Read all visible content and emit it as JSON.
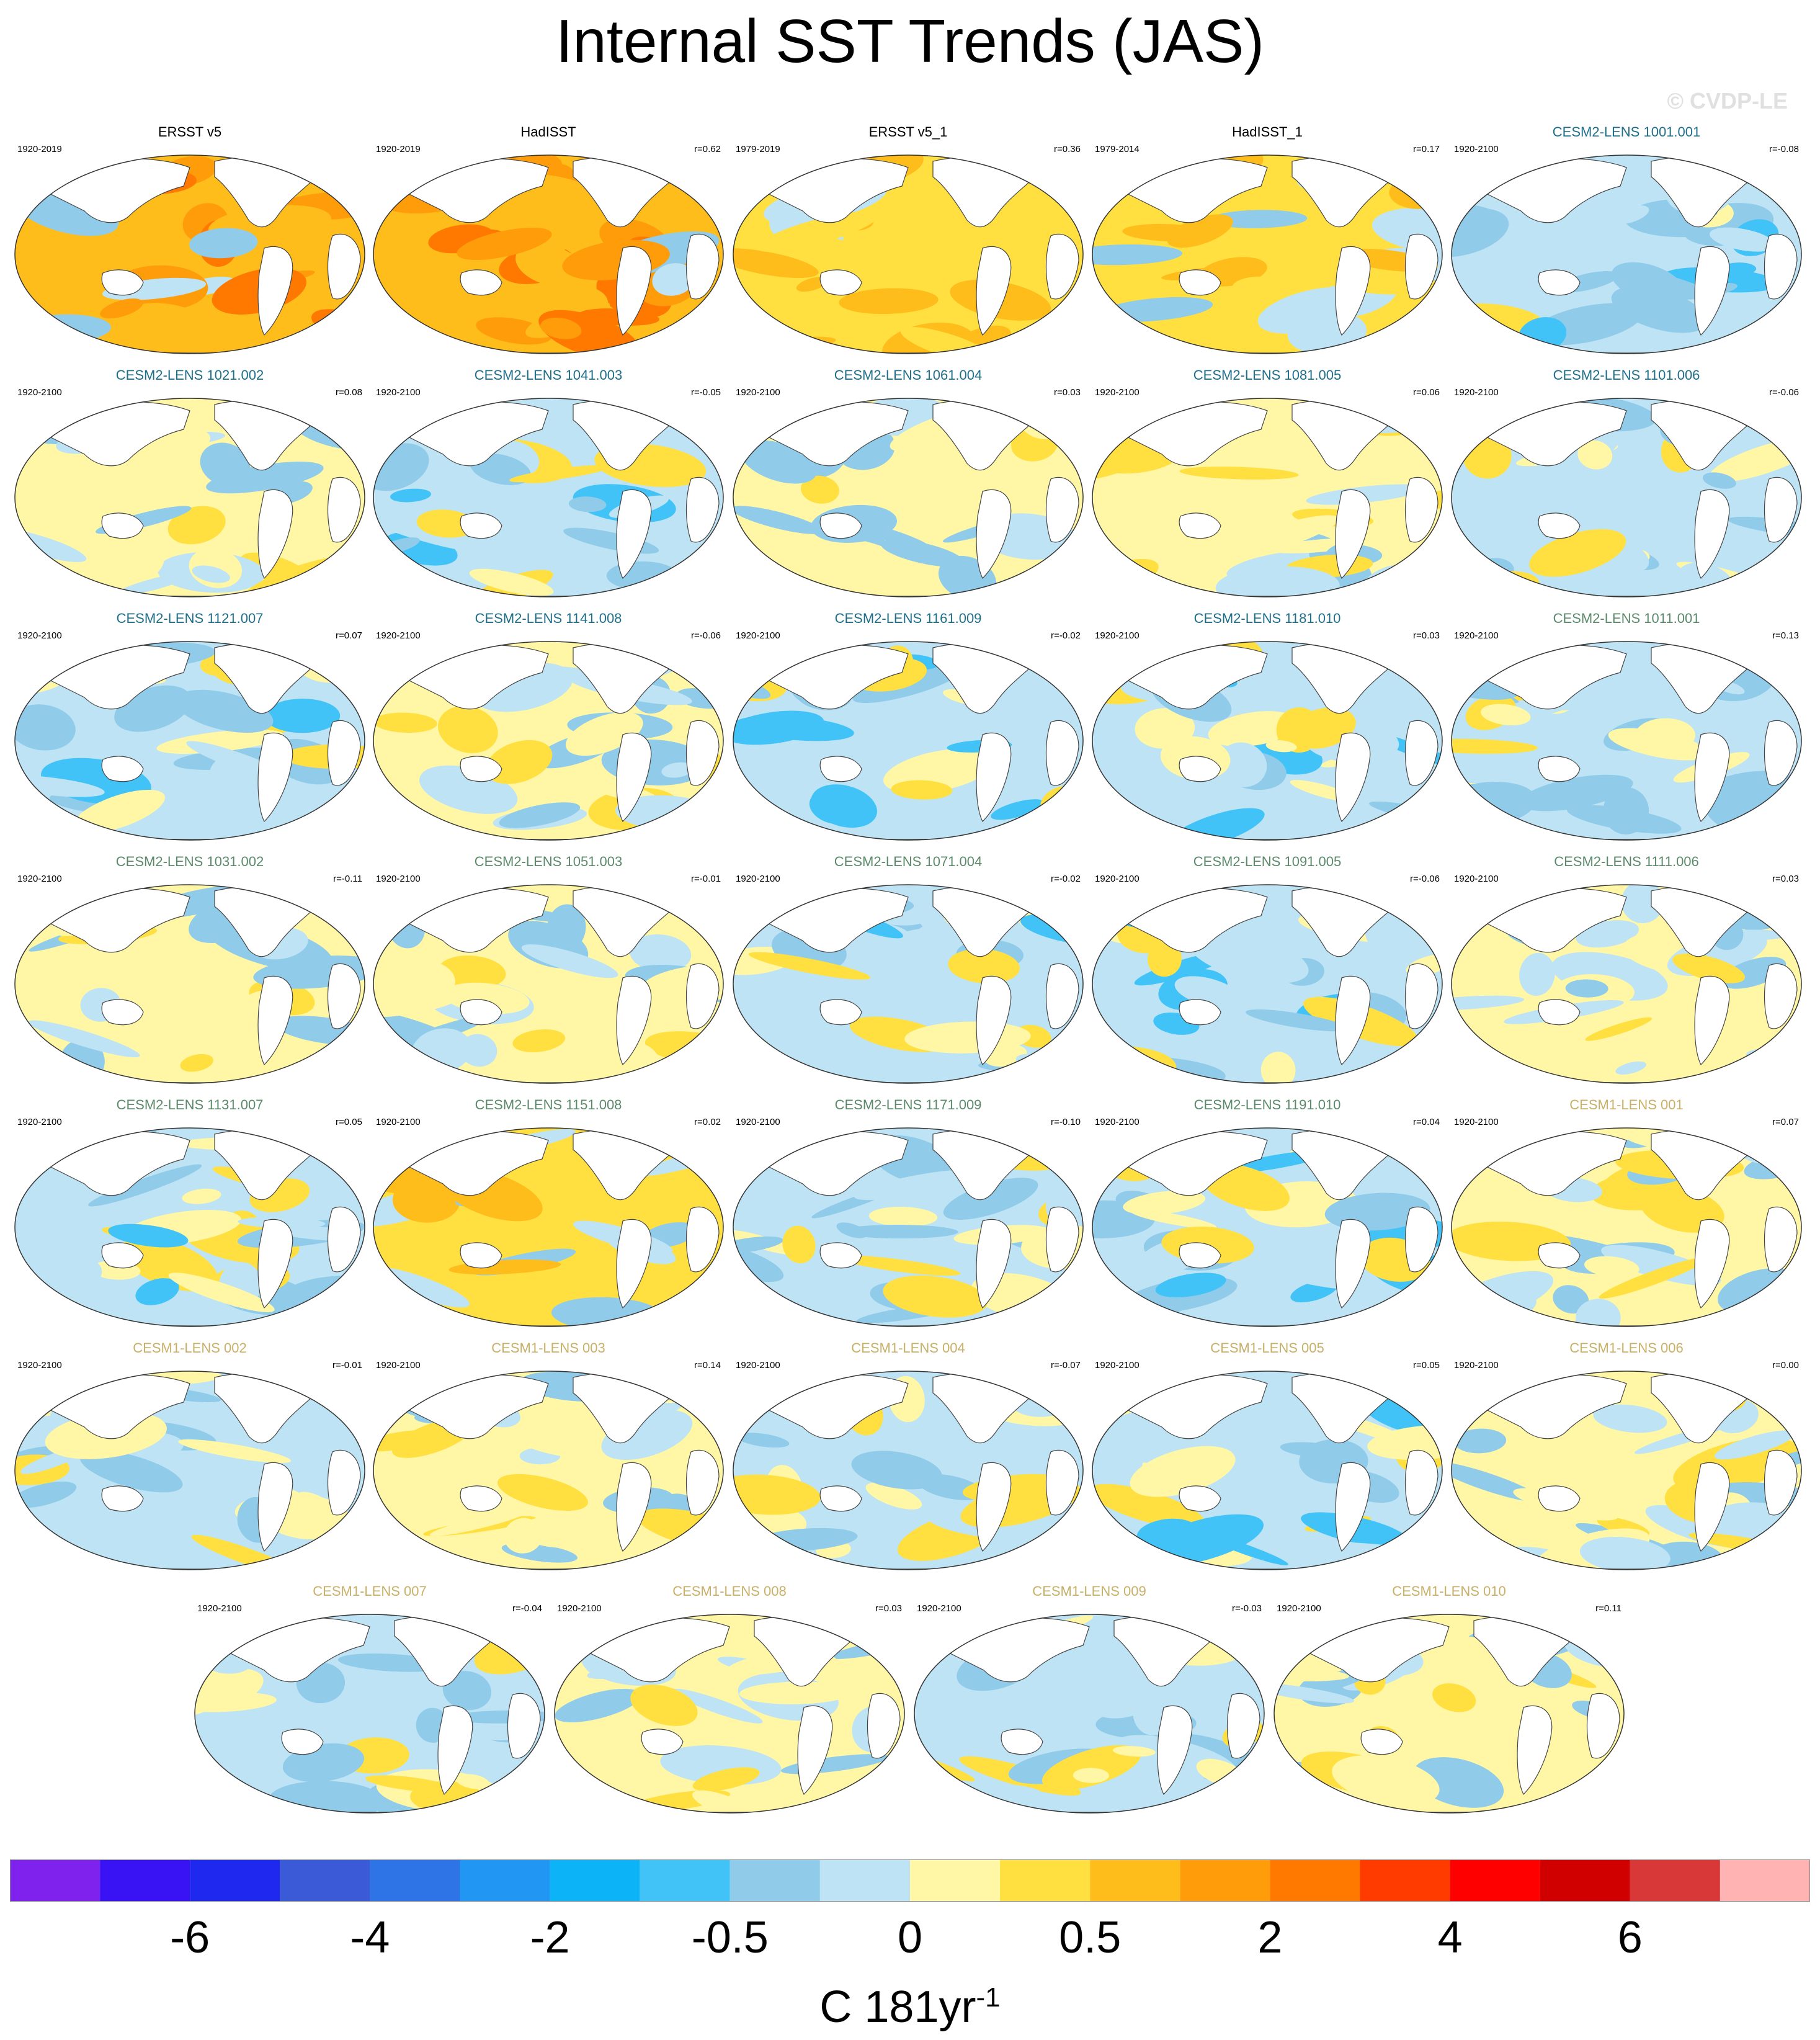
{
  "title": "Internal SST Trends (JAS)",
  "watermark": "© CVDP-LE",
  "colorbar": {
    "colors": [
      "#7f22ee",
      "#3a13f5",
      "#1e28ef",
      "#3b5ad8",
      "#2e74e6",
      "#2196f3",
      "#0cb4f7",
      "#42c3f7",
      "#90cbea",
      "#bde3f4",
      "#fff7a6",
      "#ffe040",
      "#ffbd1c",
      "#ff9c0a",
      "#ff7900",
      "#ff3b00",
      "#ff0000",
      "#d00000",
      "#d83838",
      "#ffb3b3"
    ],
    "tick_labels": [
      "-6",
      "-4",
      "-2",
      "-0.5",
      "0",
      "0.5",
      "2",
      "4",
      "6"
    ],
    "units": "C 181yr",
    "units_exponent": "-1"
  },
  "chart_data": {
    "type": "map-panels",
    "title": "Internal SST Trends (JAS)",
    "colorbar_levels": [
      "-6",
      "-4",
      "-2",
      "-0.5",
      "0",
      "0.5",
      "2",
      "4",
      "6"
    ],
    "panels": [
      {
        "name": "ERSST v5",
        "years": "1920-2019",
        "corr": "",
        "group": "obs",
        "warmth": 0.85
      },
      {
        "name": "HadISST",
        "years": "1920-2019",
        "corr": "r=0.62",
        "group": "obs",
        "warmth": 0.9
      },
      {
        "name": "ERSST v5_1",
        "years": "1979-2019",
        "corr": "r=0.36",
        "group": "obs",
        "warmth": 0.7
      },
      {
        "name": "HadISST_1",
        "years": "1979-2014",
        "corr": "r=0.17",
        "group": "obs",
        "warmth": 0.6
      },
      {
        "name": "CESM2-LENS 1001.001",
        "years": "1920-2100",
        "corr": "r=-0.08",
        "group": "cesm2a",
        "warmth": 0.25
      },
      {
        "name": "CESM2-LENS 1021.002",
        "years": "1920-2100",
        "corr": "r=0.08",
        "group": "cesm2a",
        "warmth": 0.45
      },
      {
        "name": "CESM2-LENS 1041.003",
        "years": "1920-2100",
        "corr": "r=-0.05",
        "group": "cesm2a",
        "warmth": 0.35
      },
      {
        "name": "CESM2-LENS 1061.004",
        "years": "1920-2100",
        "corr": "r=0.03",
        "group": "cesm2a",
        "warmth": 0.45
      },
      {
        "name": "CESM2-LENS 1081.005",
        "years": "1920-2100",
        "corr": "r=0.06",
        "group": "cesm2a",
        "warmth": 0.45
      },
      {
        "name": "CESM2-LENS 1101.006",
        "years": "1920-2100",
        "corr": "r=-0.06",
        "group": "cesm2a",
        "warmth": 0.4
      },
      {
        "name": "CESM2-LENS 1121.007",
        "years": "1920-2100",
        "corr": "r=0.07",
        "group": "cesm2a",
        "warmth": 0.35
      },
      {
        "name": "CESM2-LENS 1141.008",
        "years": "1920-2100",
        "corr": "r=-0.06",
        "group": "cesm2a",
        "warmth": 0.45
      },
      {
        "name": "CESM2-LENS 1161.009",
        "years": "1920-2100",
        "corr": "r=-0.02",
        "group": "cesm2a",
        "warmth": 0.3
      },
      {
        "name": "CESM2-LENS 1181.010",
        "years": "1920-2100",
        "corr": "r=0.03",
        "group": "cesm2a",
        "warmth": 0.35
      },
      {
        "name": "CESM2-LENS 1011.001",
        "years": "1920-2100",
        "corr": "r=0.13",
        "group": "cesm2b",
        "warmth": 0.4
      },
      {
        "name": "CESM2-LENS 1031.002",
        "years": "1920-2100",
        "corr": "r=-0.11",
        "group": "cesm2b",
        "warmth": 0.55
      },
      {
        "name": "CESM2-LENS 1051.003",
        "years": "1920-2100",
        "corr": "r=-0.01",
        "group": "cesm2b",
        "warmth": 0.55
      },
      {
        "name": "CESM2-LENS 1071.004",
        "years": "1920-2100",
        "corr": "r=-0.02",
        "group": "cesm2b",
        "warmth": 0.35
      },
      {
        "name": "CESM2-LENS 1091.005",
        "years": "1920-2100",
        "corr": "r=-0.06",
        "group": "cesm2b",
        "warmth": 0.3
      },
      {
        "name": "CESM2-LENS 1111.006",
        "years": "1920-2100",
        "corr": "r=0.03",
        "group": "cesm2b",
        "warmth": 0.45
      },
      {
        "name": "CESM2-LENS 1131.007",
        "years": "1920-2100",
        "corr": "r=0.05",
        "group": "cesm2b",
        "warmth": 0.35
      },
      {
        "name": "CESM2-LENS 1151.008",
        "years": "1920-2100",
        "corr": "r=0.02",
        "group": "cesm2b",
        "warmth": 0.6
      },
      {
        "name": "CESM2-LENS 1171.009",
        "years": "1920-2100",
        "corr": "r=-0.10",
        "group": "cesm2b",
        "warmth": 0.4
      },
      {
        "name": "CESM2-LENS 1191.010",
        "years": "1920-2100",
        "corr": "r=0.04",
        "group": "cesm2b",
        "warmth": 0.35
      },
      {
        "name": "CESM1-LENS 001",
        "years": "1920-2100",
        "corr": "r=0.07",
        "group": "cesm1",
        "warmth": 0.45
      },
      {
        "name": "CESM1-LENS 002",
        "years": "1920-2100",
        "corr": "r=-0.01",
        "group": "cesm1",
        "warmth": 0.4
      },
      {
        "name": "CESM1-LENS 003",
        "years": "1920-2100",
        "corr": "r=0.14",
        "group": "cesm1",
        "warmth": 0.5
      },
      {
        "name": "CESM1-LENS 004",
        "years": "1920-2100",
        "corr": "r=-0.07",
        "group": "cesm1",
        "warmth": 0.4
      },
      {
        "name": "CESM1-LENS 005",
        "years": "1920-2100",
        "corr": "r=0.05",
        "group": "cesm1",
        "warmth": 0.35
      },
      {
        "name": "CESM1-LENS 006",
        "years": "1920-2100",
        "corr": "r=0.00",
        "group": "cesm1",
        "warmth": 0.45
      },
      {
        "name": "CESM1-LENS 007",
        "years": "1920-2100",
        "corr": "r=-0.04",
        "group": "cesm1",
        "warmth": 0.4
      },
      {
        "name": "CESM1-LENS 008",
        "years": "1920-2100",
        "corr": "r=0.03",
        "group": "cesm1",
        "warmth": 0.45
      },
      {
        "name": "CESM1-LENS 009",
        "years": "1920-2100",
        "corr": "r=-0.03",
        "group": "cesm1",
        "warmth": 0.4
      },
      {
        "name": "CESM1-LENS 010",
        "years": "1920-2100",
        "corr": "r=0.11",
        "group": "cesm1",
        "warmth": 0.5
      }
    ]
  },
  "group_colors": {
    "obs": "#000000",
    "cesm2a": "#1f6f8b",
    "cesm2b": "#5b8a6b",
    "cesm1": "#c8b068"
  }
}
